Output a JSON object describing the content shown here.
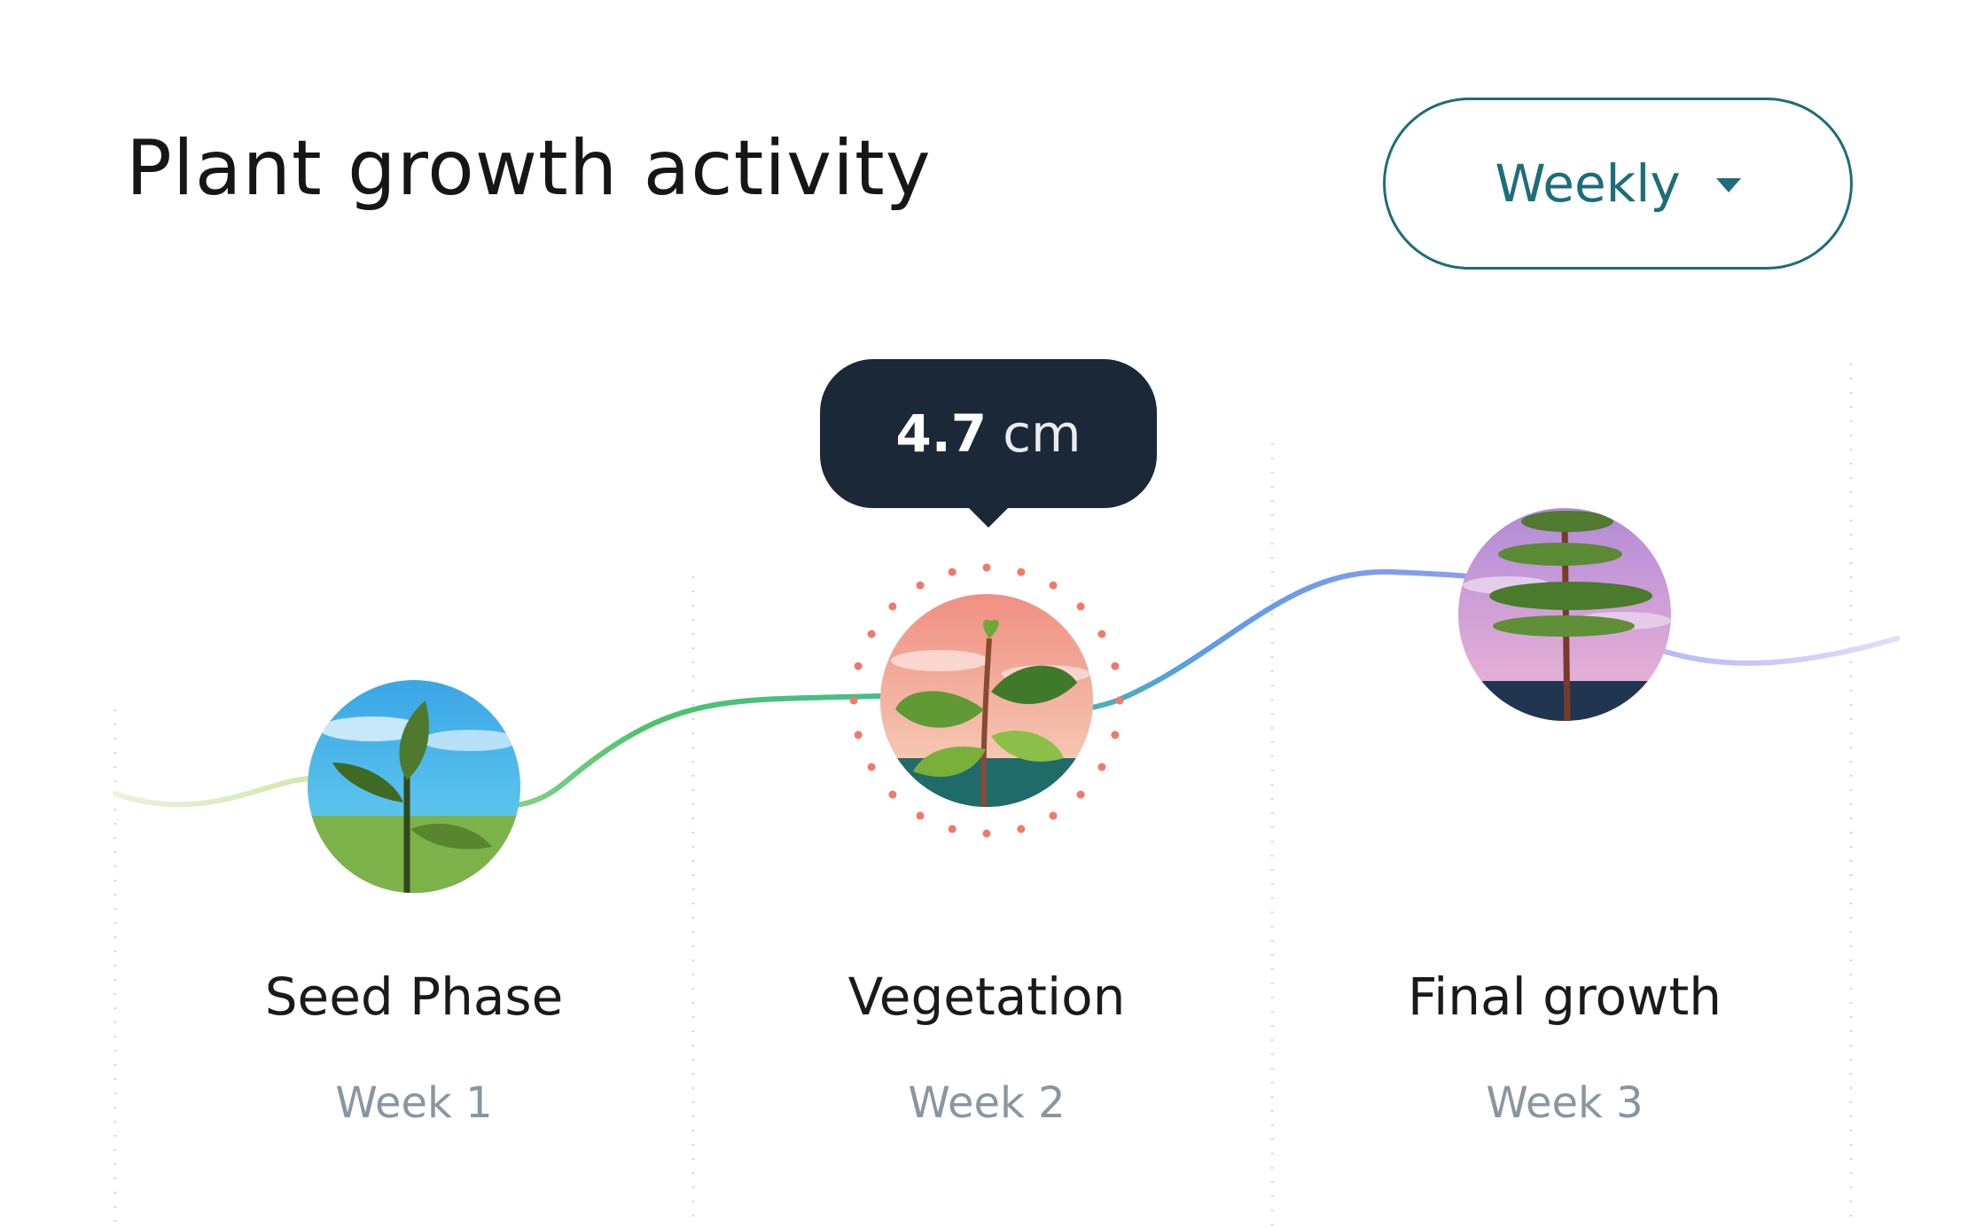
{
  "header": {
    "title": "Plant growth activity",
    "period_select": {
      "selected": "Weekly",
      "icon": "chevron-down-icon"
    }
  },
  "tooltip": {
    "value": "4.7",
    "unit": "cm",
    "stage": "Vegetation"
  },
  "stages": [
    {
      "name": "Seed Phase",
      "week": "Week 1",
      "icon": "sprout-illustration"
    },
    {
      "name": "Vegetation",
      "week": "Week 2",
      "icon": "young-plant-illustration",
      "selected": true
    },
    {
      "name": "Final growth",
      "week": "Week 3",
      "icon": "tree-illustration"
    }
  ],
  "colors": {
    "accent": "#1c6e78",
    "tooltip_bg": "#1a2838",
    "line_start": "#d9ead0",
    "line_green": "#4cc36e",
    "line_blue": "#5e9be8",
    "line_purple": "#c7b3f0",
    "highlight_dots": "#f07a6a"
  }
}
